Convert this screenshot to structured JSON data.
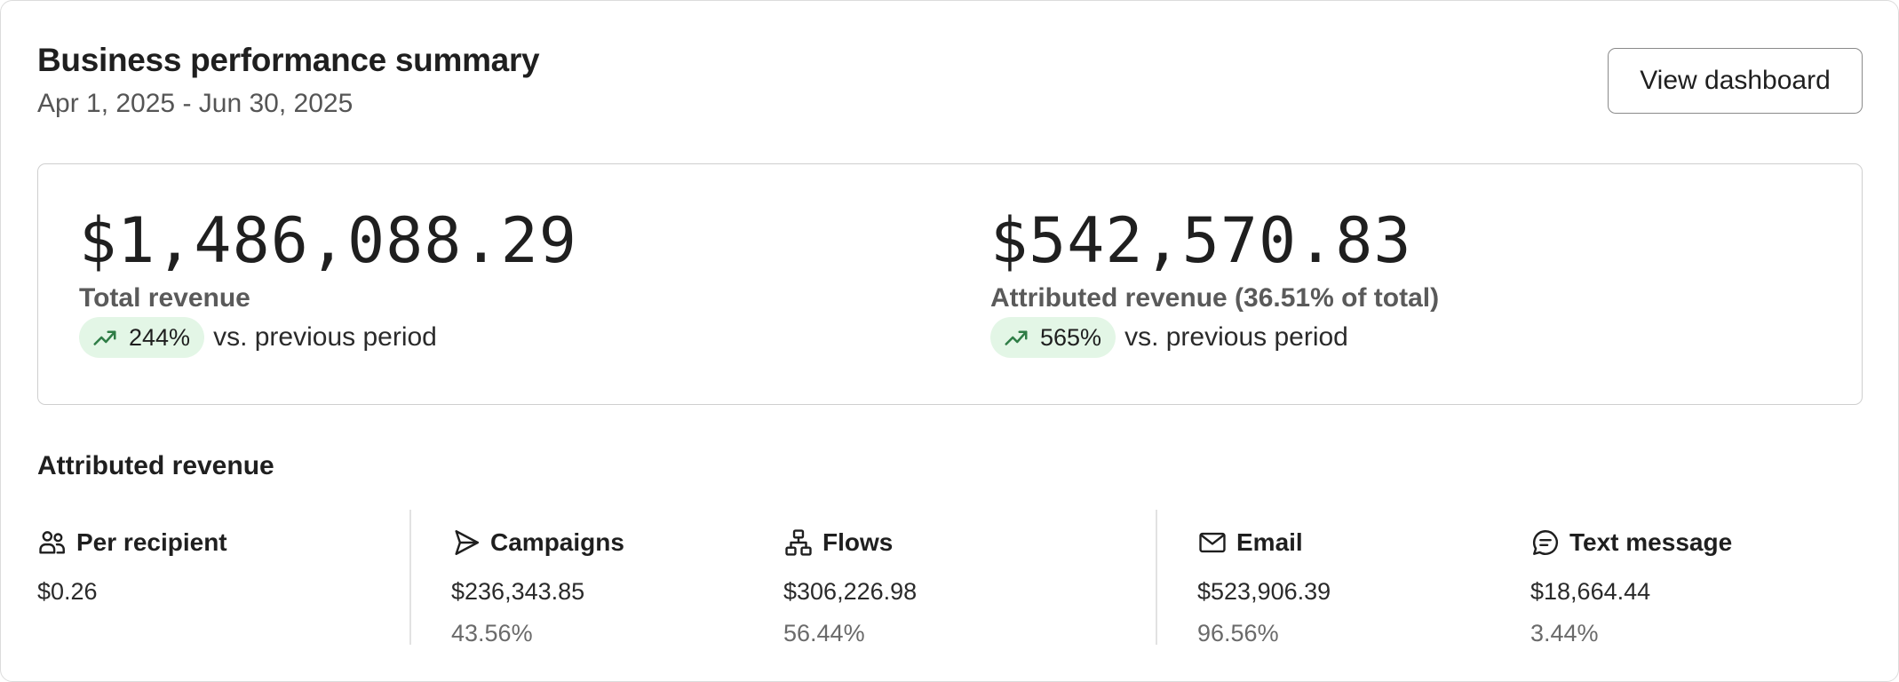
{
  "header": {
    "title": "Business performance summary",
    "date_range": "Apr 1, 2025 - Jun 30, 2025",
    "view_button": "View dashboard"
  },
  "summary": {
    "total": {
      "value": "$1,486,088.29",
      "label": "Total revenue",
      "delta": "244%",
      "delta_suffix": "vs. previous period"
    },
    "attributed": {
      "value": "$542,570.83",
      "label": "Attributed revenue (36.51% of total)",
      "delta": "565%",
      "delta_suffix": "vs. previous period"
    }
  },
  "attributed_section": {
    "title": "Attributed revenue",
    "stats": [
      {
        "name": "Per recipient",
        "icon": "users-icon",
        "value": "$0.26"
      },
      {
        "name": "Campaigns",
        "icon": "send-icon",
        "value": "$236,343.85",
        "percent": "43.56%"
      },
      {
        "name": "Flows",
        "icon": "flow-icon",
        "value": "$306,226.98",
        "percent": "56.44%"
      },
      {
        "name": "Email",
        "icon": "mail-icon",
        "value": "$523,906.39",
        "percent": "96.56%"
      },
      {
        "name": "Text message",
        "icon": "sms-icon",
        "value": "$18,664.44",
        "percent": "3.44%"
      }
    ]
  },
  "colors": {
    "trend_up_bg": "#e3f6e6",
    "trend_up_icon": "#2f7d46",
    "border": "#dcdcdc"
  }
}
